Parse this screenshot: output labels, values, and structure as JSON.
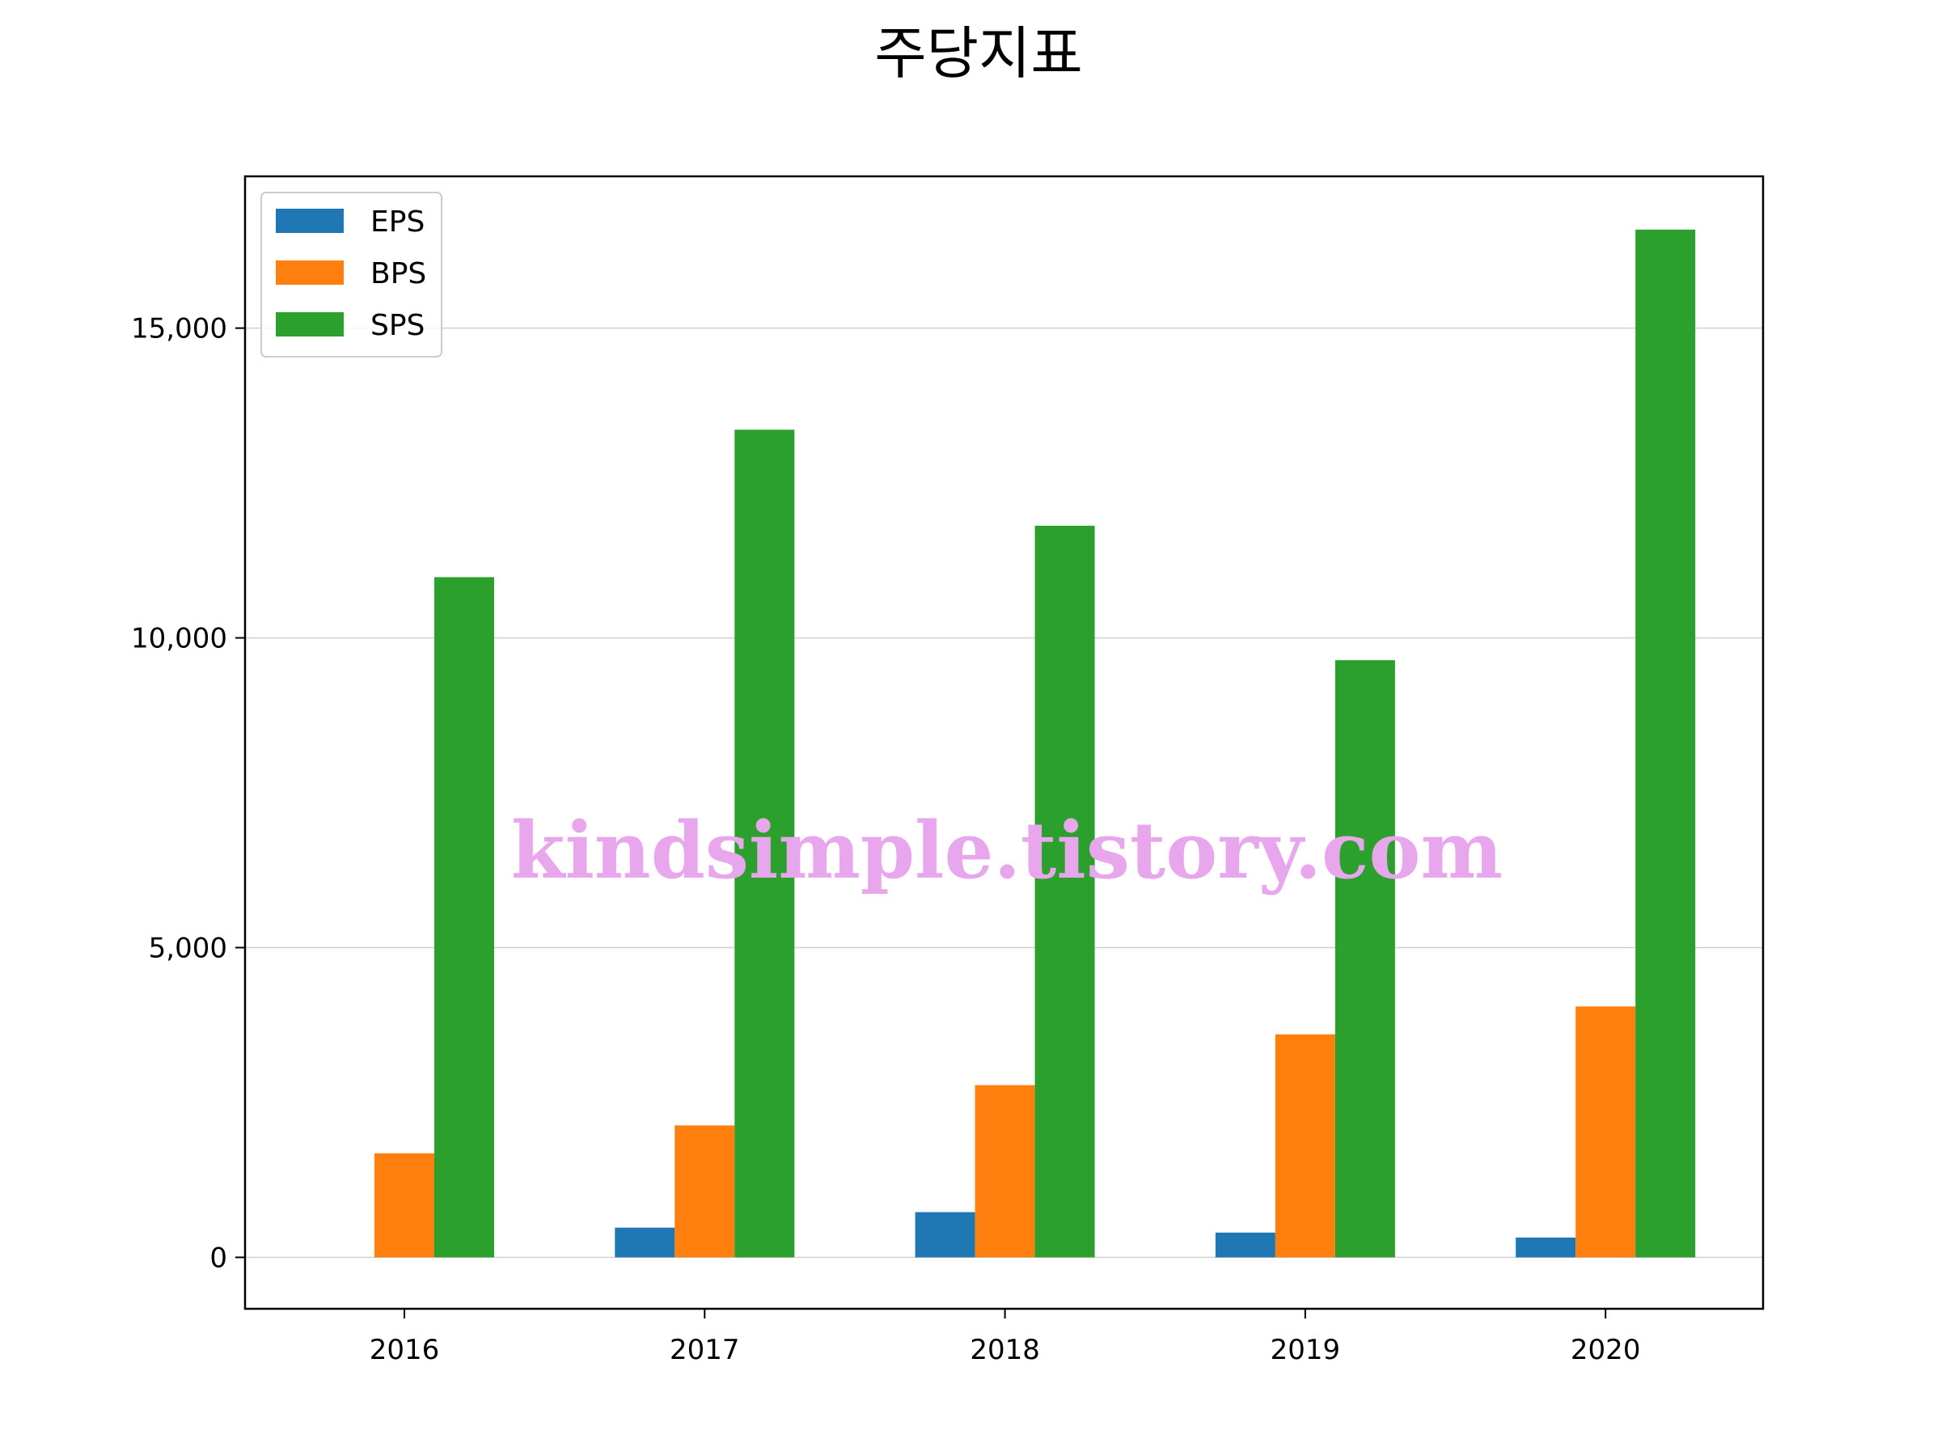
{
  "chart_data": {
    "type": "bar",
    "title": "주당지표",
    "xlabel": "",
    "ylabel": "",
    "categories": [
      "2016",
      "2017",
      "2018",
      "2019",
      "2020"
    ],
    "series": [
      {
        "name": "EPS",
        "color": "#1f77b4",
        "values": [
          0,
          480,
          730,
          400,
          320
        ]
      },
      {
        "name": "BPS",
        "color": "#ff7f0e",
        "values": [
          1680,
          2130,
          2780,
          3600,
          4050
        ]
      },
      {
        "name": "SPS",
        "color": "#2ca02c",
        "values": [
          10980,
          13360,
          11810,
          9640,
          16590
        ]
      }
    ],
    "ylim": [
      -830,
      17450
    ],
    "yticks": [
      0,
      5000,
      10000,
      15000
    ],
    "ytick_labels": [
      "0",
      "5,000",
      "10,000",
      "15,000"
    ],
    "grid": "y",
    "legend_position": "top-left"
  },
  "watermark": "kindsimple.tistory.com"
}
